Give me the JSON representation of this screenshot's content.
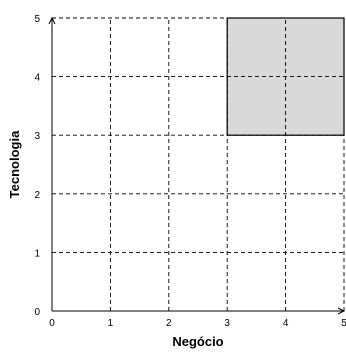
{
  "chart_data": {
    "type": "area",
    "title": "",
    "xlabel": "Negócio",
    "ylabel": "Tecnologia",
    "xlim": [
      0,
      5
    ],
    "ylim": [
      0,
      5
    ],
    "x_ticks": [
      "0",
      "1",
      "2",
      "3",
      "4",
      "5"
    ],
    "y_ticks": [
      "0",
      "1",
      "2",
      "3",
      "4",
      "5"
    ],
    "grid": true,
    "grid_style": "dashed",
    "highlighted_region": {
      "x": [
        3,
        5
      ],
      "y": [
        3,
        5
      ],
      "color": "#d9d9d9"
    },
    "colors": {
      "grid": "#000000",
      "region_fill": "#d9d9d9",
      "region_border": "#000000"
    }
  }
}
